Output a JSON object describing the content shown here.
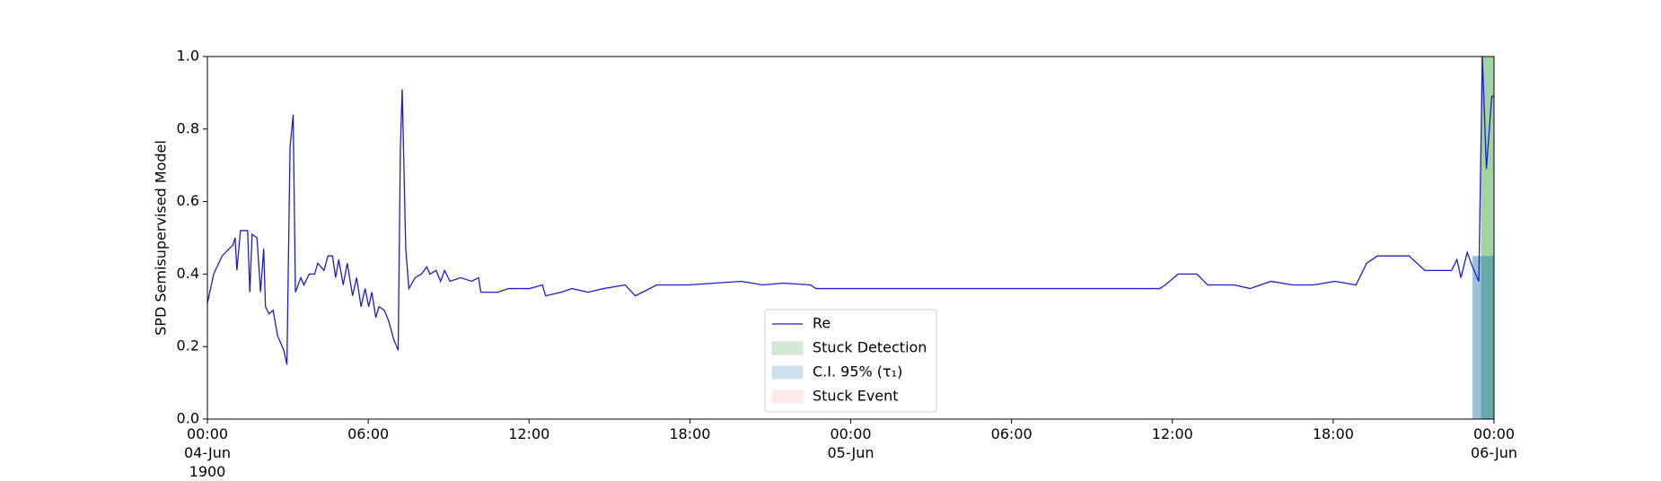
{
  "chart_data": {
    "type": "line",
    "ylabel": "SPD Semisupervised Model",
    "x": [
      "1900-06-04 00:00",
      "1900-06-04 00:14",
      "1900-06-04 00:33",
      "1900-06-04 00:57",
      "1900-06-04 01:02",
      "1900-06-04 01:06",
      "1900-06-04 01:14",
      "1900-06-04 01:30",
      "1900-06-04 01:35",
      "1900-06-04 01:40",
      "1900-06-04 01:51",
      "1900-06-04 01:59",
      "1900-06-04 02:06",
      "1900-06-04 02:10",
      "1900-06-04 02:18",
      "1900-06-04 02:27",
      "1900-06-04 02:37",
      "1900-06-04 02:51",
      "1900-06-04 02:58",
      "1900-06-04 03:05",
      "1900-06-04 03:12",
      "1900-06-04 03:17",
      "1900-06-04 03:29",
      "1900-06-04 03:36",
      "1900-06-04 03:48",
      "1900-06-04 04:00",
      "1900-06-04 04:07",
      "1900-06-04 04:21",
      "1900-06-04 04:30",
      "1900-06-04 04:40",
      "1900-06-04 04:47",
      "1900-06-04 04:54",
      "1900-06-04 05:04",
      "1900-06-04 05:13",
      "1900-06-04 05:25",
      "1900-06-04 05:34",
      "1900-06-04 05:44",
      "1900-06-04 05:53",
      "1900-06-04 06:01",
      "1900-06-04 06:08",
      "1900-06-04 06:17",
      "1900-06-04 06:24",
      "1900-06-04 06:36",
      "1900-06-04 06:46",
      "1900-06-04 06:57",
      "1900-06-04 07:07",
      "1900-06-04 07:12",
      "1900-06-04 07:16",
      "1900-06-04 07:24",
      "1900-06-04 07:31",
      "1900-06-04 07:45",
      "1900-06-04 07:59",
      "1900-06-04 08:11",
      "1900-06-04 08:18",
      "1900-06-04 08:32",
      "1900-06-04 08:42",
      "1900-06-04 08:51",
      "1900-06-04 09:03",
      "1900-06-04 09:27",
      "1900-06-04 09:51",
      "1900-06-04 10:07",
      "1900-06-04 10:12",
      "1900-06-04 10:31",
      "1900-06-04 10:50",
      "1900-06-04 11:14",
      "1900-06-04 12:01",
      "1900-06-04 12:30",
      "1900-06-04 12:37",
      "1900-06-04 13:12",
      "1900-06-04 13:36",
      "1900-06-04 14:12",
      "1900-06-04 14:47",
      "1900-06-04 15:35",
      "1900-06-04 15:58",
      "1900-06-04 16:46",
      "1900-06-04 17:57",
      "1900-06-04 19:55",
      "1900-06-04 20:43",
      "1900-06-04 21:30",
      "1900-06-04 22:30",
      "1900-06-04 22:42",
      "1900-06-05 07:47",
      "1900-06-05 11:32",
      "1900-06-05 11:44",
      "1900-06-05 12:13",
      "1900-06-05 12:55",
      "1900-06-05 13:19",
      "1900-06-05 14:18",
      "1900-06-05 14:54",
      "1900-06-05 15:41",
      "1900-06-05 16:29",
      "1900-06-05 17:16",
      "1900-06-05 18:04",
      "1900-06-05 18:51",
      "1900-06-05 19:15",
      "1900-06-05 19:39",
      "1900-06-05 20:50",
      "1900-06-05 21:25",
      "1900-06-05 22:25",
      "1900-06-05 22:37",
      "1900-06-05 22:46",
      "1900-06-05 23:00",
      "1900-06-05 23:12",
      "1900-06-05 23:26",
      "1900-06-05 23:34",
      "1900-06-05 23:43",
      "1900-06-05 23:55",
      "1900-06-06 00:00"
    ],
    "series": [
      {
        "name": "Re",
        "color": "#1c1cc8",
        "values": [
          0.32,
          0.4,
          0.45,
          0.48,
          0.5,
          0.41,
          0.52,
          0.52,
          0.35,
          0.51,
          0.5,
          0.35,
          0.47,
          0.31,
          0.29,
          0.3,
          0.23,
          0.19,
          0.15,
          0.75,
          0.84,
          0.35,
          0.39,
          0.37,
          0.4,
          0.4,
          0.43,
          0.41,
          0.45,
          0.45,
          0.39,
          0.44,
          0.37,
          0.43,
          0.34,
          0.39,
          0.31,
          0.36,
          0.31,
          0.35,
          0.28,
          0.31,
          0.3,
          0.27,
          0.22,
          0.19,
          0.75,
          0.91,
          0.47,
          0.36,
          0.39,
          0.4,
          0.42,
          0.4,
          0.41,
          0.38,
          0.41,
          0.38,
          0.39,
          0.38,
          0.39,
          0.35,
          0.35,
          0.35,
          0.36,
          0.36,
          0.37,
          0.34,
          0.35,
          0.36,
          0.35,
          0.36,
          0.37,
          0.34,
          0.37,
          0.37,
          0.38,
          0.37,
          0.375,
          0.37,
          0.36,
          0.36,
          0.36,
          0.37,
          0.4,
          0.4,
          0.37,
          0.37,
          0.36,
          0.38,
          0.37,
          0.37,
          0.38,
          0.37,
          0.43,
          0.45,
          0.45,
          0.41,
          0.41,
          0.44,
          0.39,
          0.46,
          0.42,
          0.38,
          1.0,
          0.69,
          0.89,
          0.89
        ]
      }
    ],
    "regions": [
      {
        "name": "Stuck Detection",
        "color": "#2ca02c",
        "x": [
          "1900-06-05 23:31",
          "1900-06-06 00:00"
        ],
        "y": [
          0,
          1
        ]
      },
      {
        "name": "C.I. 95% (τ₁)",
        "color": "#1f77b4",
        "x": [
          "1900-06-05 23:12",
          "1900-06-06 00:00"
        ],
        "y": [
          0,
          0.45
        ]
      },
      {
        "name": "Stuck Event",
        "color": "#ff9999"
      }
    ],
    "xlim": [
      "1900-06-04 00:00",
      "1900-06-06 00:00"
    ],
    "xticks": [
      {
        "value": "1900-06-04 00:00",
        "label": "00:00\n04-Jun\n1900"
      },
      {
        "value": "1900-06-04 06:00",
        "label": "06:00"
      },
      {
        "value": "1900-06-04 12:00",
        "label": "12:00"
      },
      {
        "value": "1900-06-04 18:00",
        "label": "18:00"
      },
      {
        "value": "1900-06-05 00:00",
        "label": "00:00\n05-Jun"
      },
      {
        "value": "1900-06-05 06:00",
        "label": "06:00"
      },
      {
        "value": "1900-06-05 12:00",
        "label": "12:00"
      },
      {
        "value": "1900-06-05 18:00",
        "label": "18:00"
      },
      {
        "value": "1900-06-06 00:00",
        "label": "00:00\n06-Jun"
      }
    ],
    "ylim": [
      0,
      1
    ],
    "yticks": [
      {
        "value": 0,
        "label": "0.0"
      },
      0.2,
      0.4,
      0.6,
      0.8,
      {
        "value": 1,
        "label": "1.0"
      }
    ],
    "legend": "lower center"
  }
}
